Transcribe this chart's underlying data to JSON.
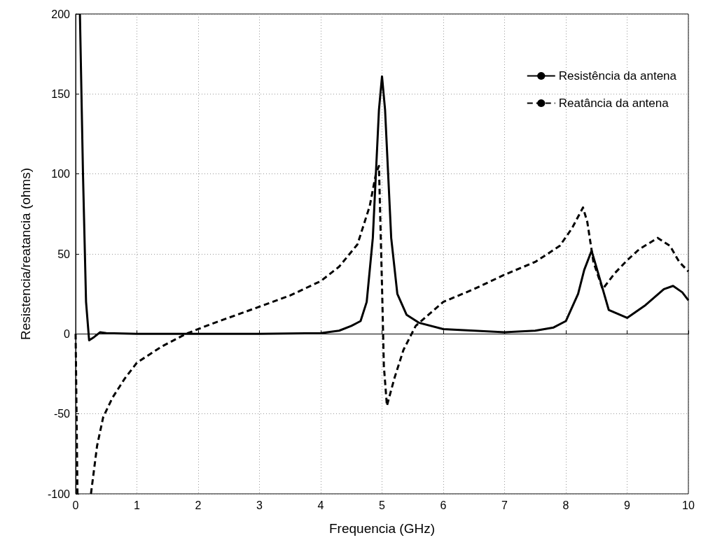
{
  "chart_data": {
    "type": "line",
    "xlabel": "Frequencia (GHz)",
    "ylabel": "Resistencia/reatancia (ohms)",
    "xlim": [
      0,
      10
    ],
    "xticks": [
      0,
      1,
      2,
      3,
      4,
      5,
      6,
      7,
      8,
      9,
      10
    ],
    "ylim": [
      -100,
      200
    ],
    "yticks": [
      -100,
      -50,
      0,
      50,
      100,
      150,
      200
    ],
    "grid": true,
    "legend": "top right",
    "marker": "none",
    "series": [
      {
        "name": "Resistência da antena",
        "color": "#000000",
        "line_style": "solid",
        "x": [
          0.07,
          0.12,
          0.17,
          0.22,
          0.3,
          0.4,
          0.5,
          1,
          2,
          3,
          4,
          4.3,
          4.5,
          4.65,
          4.75,
          4.85,
          4.95,
          5.0,
          5.05,
          5.15,
          5.25,
          5.4,
          5.6,
          6,
          7,
          7.5,
          7.8,
          8.0,
          8.2,
          8.3,
          8.42,
          8.55,
          8.7,
          9.0,
          9.3,
          9.6,
          9.75,
          9.9,
          10
        ],
        "values": [
          200,
          100,
          20,
          -4,
          -2,
          1,
          0.5,
          0,
          0,
          0,
          0.5,
          2,
          5,
          8,
          20,
          60,
          140,
          161,
          140,
          60,
          25,
          12,
          7,
          3,
          1,
          2,
          4,
          8,
          25,
          40,
          52,
          35,
          15,
          10,
          18,
          28,
          30,
          26,
          21
        ]
      },
      {
        "name": "Reatância da antena",
        "color": "#000000",
        "line_style": "dashed",
        "x": [
          0,
          0.03,
          0.1,
          0.25,
          0.35,
          0.45,
          0.6,
          0.8,
          1,
          1.4,
          1.8,
          2.2,
          3,
          3.5,
          4,
          4.3,
          4.6,
          4.8,
          4.9,
          4.95,
          5.0,
          5.03,
          5.08,
          5.2,
          5.35,
          5.55,
          6,
          6.5,
          7,
          7.5,
          7.9,
          8.1,
          8.28,
          8.35,
          8.45,
          8.6,
          8.8,
          9,
          9.2,
          9.5,
          9.7,
          9.85,
          10
        ],
        "values": [
          0,
          -100,
          null,
          -100,
          -70,
          -52,
          -40,
          -28,
          -18,
          -8,
          0,
          6,
          17,
          24,
          33,
          42,
          56,
          80,
          100,
          105,
          30,
          -20,
          -45,
          -28,
          -10,
          5,
          20,
          28,
          37,
          45,
          55,
          66,
          79,
          70,
          45,
          28,
          38,
          46,
          53,
          60,
          55,
          45,
          39
        ]
      }
    ]
  }
}
